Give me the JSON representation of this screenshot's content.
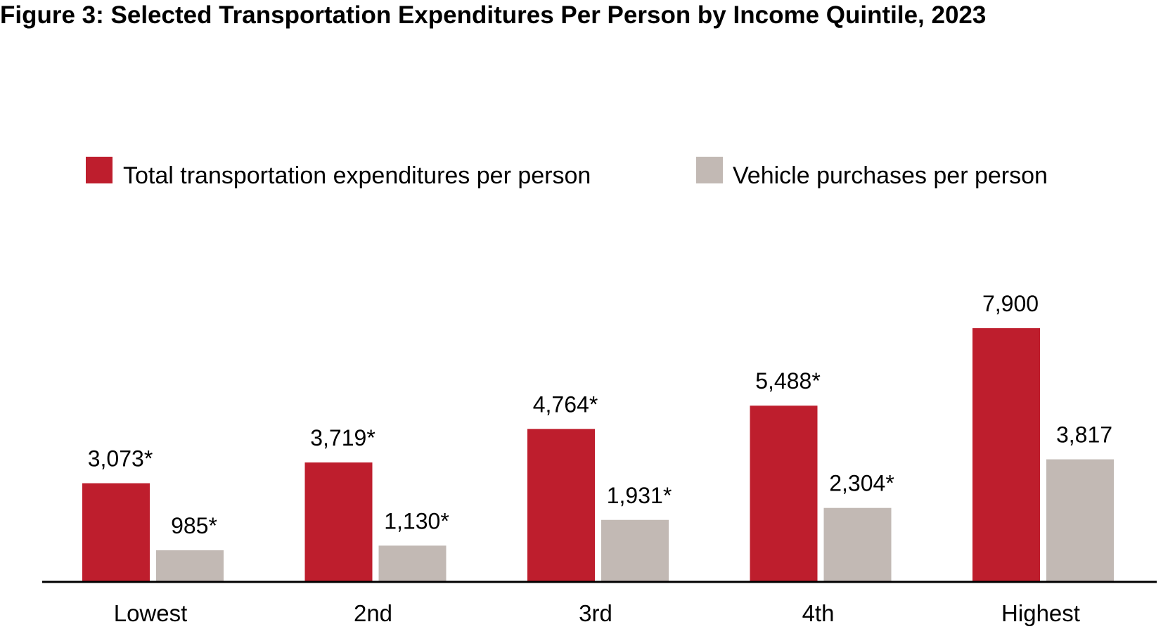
{
  "chart_data": {
    "type": "bar",
    "title": "Figure 3: Selected Transportation Expenditures Per Person by Income Quintile, 2023",
    "xlabel": "",
    "ylabel": "",
    "ylim": [
      0,
      7900
    ],
    "grid": false,
    "legend_position": "top",
    "categories": [
      "Lowest",
      "2nd",
      "3rd",
      "4th",
      "Highest"
    ],
    "series": [
      {
        "name": "Total transportation expenditures per person",
        "color": "#BE1E2D",
        "values": [
          3073,
          3719,
          4764,
          5488,
          7900
        ],
        "labels": [
          "3,073*",
          "3,719*",
          "4,764*",
          "5,488*",
          "7,900"
        ]
      },
      {
        "name": "Vehicle purchases per person",
        "color": "#C2B9B4",
        "values": [
          985,
          1130,
          1931,
          2304,
          3817
        ],
        "labels": [
          "985*",
          "1,130*",
          "1,931*",
          "2,304*",
          "3,817"
        ]
      }
    ],
    "axis_color": "#000000"
  }
}
